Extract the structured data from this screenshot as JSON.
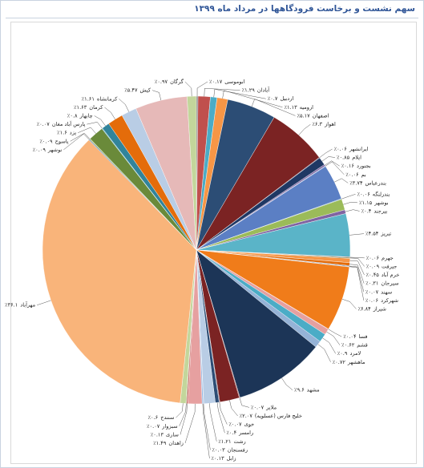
{
  "chart_data": {
    "type": "pie",
    "title": "سهم نشست و برخاست فرودگاهها در مرداد ماه ۱۳۹۹",
    "categories": [
      "ابوموسی",
      "آبادان",
      "اردبیل",
      "ارومیه",
      "اصفهان",
      "اهواز",
      "ایرانشهر",
      "ایلام",
      "بجنورد",
      "بم",
      "بندرعباس",
      "بندرلنگه",
      "بوشهر",
      "بیرجند",
      "تبریز",
      "جهرم",
      "جیرفت",
      "خرم آباد",
      "سیرجان",
      "سهند",
      "شهرکرد",
      "شیراز",
      "فسا",
      "قشم",
      "لامرد",
      "ماهشهر",
      "مشهد",
      "ملایر",
      "خلیج فارس (عسلویه)",
      "خوی",
      "رامسر",
      "رشت",
      "رفسنجان",
      "زابل",
      "زاهدان",
      "ساری",
      "سبزوار",
      "سنندج",
      "مهرآباد",
      "نوشهر",
      "یاسوج",
      "یزد",
      "پارس آباد مغان",
      "چابهار",
      "کرمان",
      "کرمانشاه",
      "کیش",
      "گرگان"
    ],
    "values": [
      0.17,
      1.29,
      0.7,
      1.13,
      5.17,
      6.3,
      0.06,
      0.85,
      0.16,
      0.06,
      3.74,
      0.06,
      1.15,
      0.4,
      4.54,
      0.06,
      0.09,
      0.45,
      0.31,
      0.07,
      0.06,
      6.84,
      0.04,
      0.62,
      0.9,
      0.72,
      9.6,
      0.07,
      2.07,
      0.07,
      0.4,
      1.21,
      0.03,
      0.13,
      1.49,
      0.13,
      0.07,
      0.6,
      36.1,
      0.09,
      0.09,
      1.6,
      0.07,
      0.8,
      1.63,
      1.61,
      5.47,
      0.97
    ],
    "value_labels": [
      "٪۰.۱۷",
      "٪۱.۲۹",
      "٪۰.۷",
      "٪۱.۱۳",
      "٪۵.۱۷",
      "٪۶.۳",
      "٪۰.۰۶",
      "٪۰.۸۵",
      "٪۰.۱۶",
      "٪۰.۰۶",
      "٪۳.۷۴",
      "٪۰.۰۶",
      "٪۱.۱۵",
      "٪۰.۴",
      "٪۴.۵۴",
      "٪۰.۰۶",
      "٪۰.۰۹",
      "٪۰.۴۵",
      "٪۰.۳۱",
      "٪۰.۰۷",
      "٪۰.۰۶",
      "٪۶.۸۴",
      "٪۰.۰۴",
      "٪۰.۶۲",
      "٪۰.۹",
      "٪۰.۷۲",
      "٪۹.۶",
      "٪۰.۰۷",
      "٪۲.۰۷",
      "٪۰.۰۷",
      "٪۰.۴",
      "٪۱.۲۱",
      "٪۰.۰۳",
      "٪۰.۱۳",
      "٪۱.۴۹",
      "٪۰.۱۳",
      "٪۰.۰۷",
      "٪۰.۶",
      "٪۳۶.۱",
      "٪۰.۰۹",
      "٪۰.۰۹",
      "٪۱.۶",
      "٪۰.۰۷",
      "٪۰.۸",
      "٪۱.۶۳",
      "٪۱.۶۱",
      "٪۵.۴۷",
      "٪۰.۹۷"
    ],
    "colors": [
      "#7f7f7f",
      "#c0504d",
      "#4bacc6",
      "#f79646",
      "#2c4d75",
      "#7b2323",
      "#403152",
      "#1f3864",
      "#8064a2",
      "#4f81bd",
      "#5b7fc4",
      "#31859c",
      "#9bbb59",
      "#8064a2",
      "#5ab4c8",
      "#c0504d",
      "#4f6228",
      "#f79646",
      "#e46c0a",
      "#1f3864",
      "#7f7f7f",
      "#f07c1a",
      "#c0504d",
      "#e6a0a0",
      "#4bacc6",
      "#95b3d7",
      "#1c3557",
      "#7b2323",
      "#7b2323",
      "#403152",
      "#2c4d75",
      "#b9cde5",
      "#5b7fc4",
      "#8db3e2",
      "#e6a0a0",
      "#c0504d",
      "#77933c",
      "#c3d69b",
      "#f9b47a",
      "#4f81bd",
      "#9bbb59",
      "#6a8a3a",
      "#4bacc6",
      "#31849b",
      "#e46c0a",
      "#b9cde5",
      "#e6b9b8",
      "#c3d69b"
    ]
  }
}
